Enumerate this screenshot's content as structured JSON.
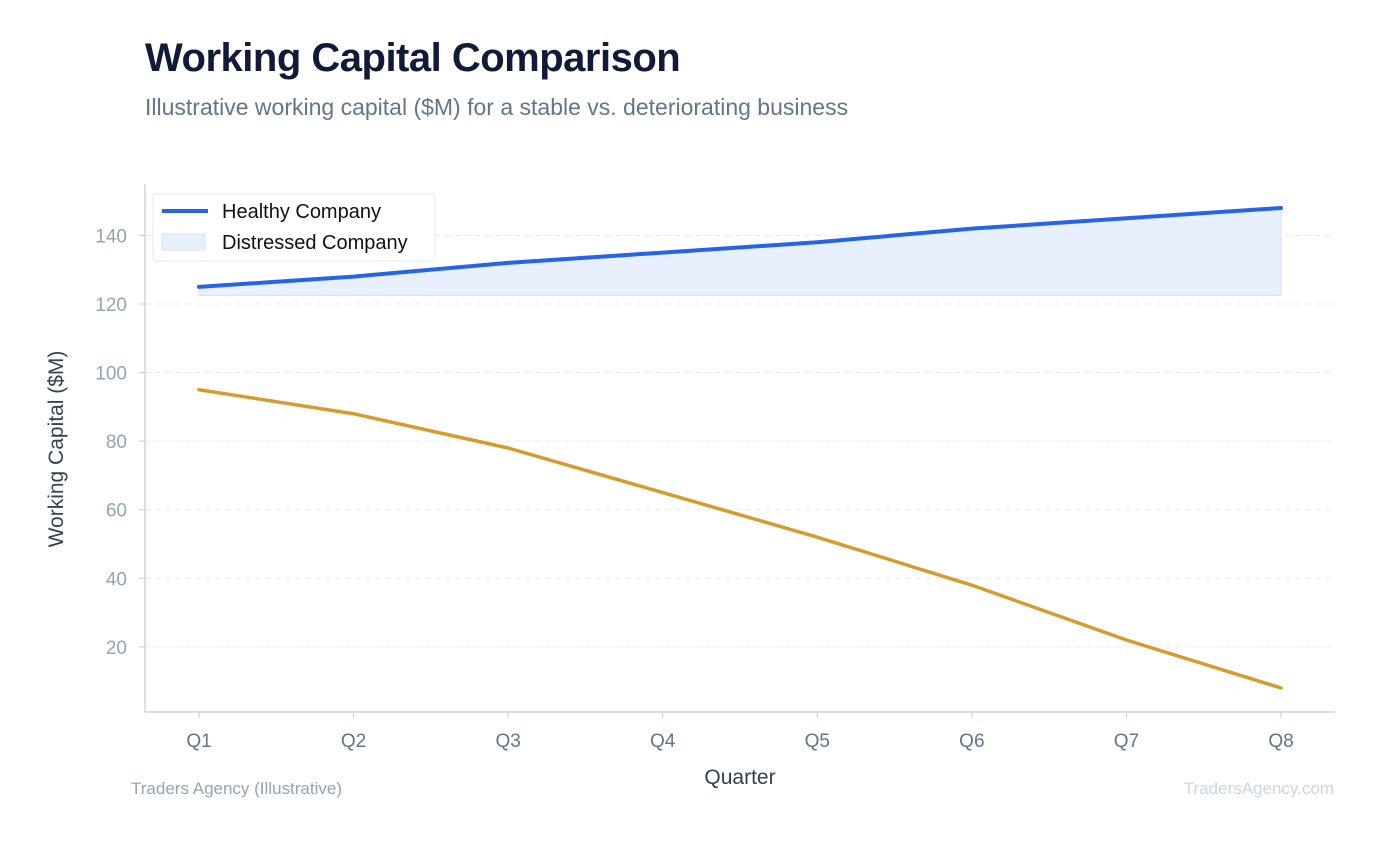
{
  "colors": {
    "healthy": "#2563eb",
    "distressed": "#d49c2e",
    "fill": "#e8effd",
    "grid": "#e5e9f0",
    "axis": "#cbd5e1"
  },
  "footer": {
    "left": "Traders Agency (Illustrative)",
    "right": "TradersAgency.com"
  },
  "chart_data": {
    "type": "line",
    "title": "Working Capital Comparison",
    "subtitle": "Illustrative working capital ($M) for a stable vs. deteriorating business",
    "xlabel": "Quarter",
    "ylabel": "Working Capital ($M)",
    "categories": [
      "Q1",
      "Q2",
      "Q3",
      "Q4",
      "Q5",
      "Q6",
      "Q7",
      "Q8"
    ],
    "ylim": [
      1,
      155
    ],
    "yticks": [
      20,
      40,
      60,
      80,
      100,
      120,
      140
    ],
    "grid": true,
    "legend_position": "top-left",
    "legend": [
      {
        "label": "Healthy Company",
        "swatch": "line"
      },
      {
        "label": "Distressed Company",
        "swatch": "area"
      }
    ],
    "series": [
      {
        "name": "Healthy Company",
        "values": [
          125,
          128,
          132,
          135,
          138,
          142,
          145,
          148
        ]
      },
      {
        "name": "Distressed Company",
        "values": [
          95,
          88,
          78,
          65,
          52,
          38,
          22,
          8
        ]
      }
    ],
    "shaded_band": {
      "lower": 122.5
    }
  }
}
